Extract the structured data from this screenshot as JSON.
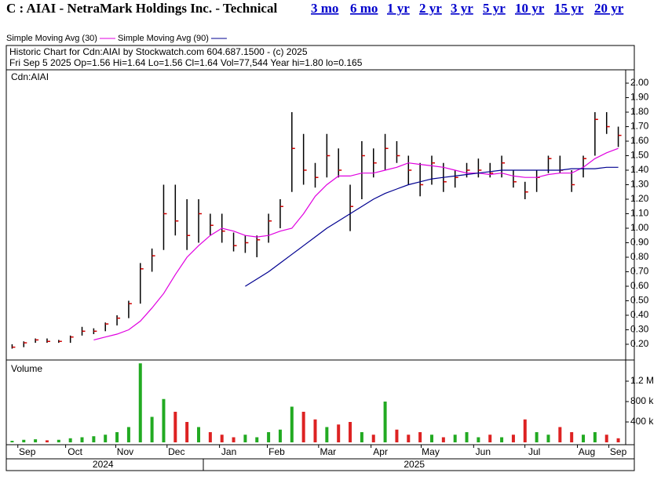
{
  "header": {
    "title": "C : AIAI - NetraMark Holdings Inc. - Technical",
    "links": [
      "3 mo",
      "6 mo",
      "1 yr",
      "2 yr",
      "3 yr",
      "5 yr",
      "10 yr",
      "15 yr",
      "20 yr"
    ],
    "info1": "Historic Chart for Cdn:AIAI by Stockwatch.com 604.687.1500 - (c) 2025",
    "info2": "Fri Sep  5 2025  Op=1.56  Hi=1.64  Lo=1.56  Cl=1.64  Vol=77,544  Year hi=1.80  lo=0.165"
  },
  "chart_data": [
    {
      "type": "ohlc",
      "label": "Cdn:AIAI",
      "high": [
        0.2,
        0.22,
        0.24,
        0.24,
        0.23,
        0.26,
        0.32,
        0.31,
        0.35,
        0.4,
        0.5,
        0.76,
        0.86,
        1.3,
        1.3,
        1.2,
        1.2,
        1.1,
        1.1,
        0.97,
        0.95,
        0.95,
        1.1,
        1.2,
        1.8,
        1.65,
        1.45,
        1.65,
        1.55,
        1.3,
        1.6,
        1.55,
        1.65,
        1.6,
        1.5,
        1.45,
        1.5,
        1.45,
        1.4,
        1.45,
        1.48,
        1.45,
        1.5,
        1.4,
        1.32,
        1.4,
        1.5,
        1.5,
        1.4,
        1.5,
        1.8,
        1.8,
        1.7
      ],
      "low": [
        0.17,
        0.18,
        0.21,
        0.21,
        0.21,
        0.21,
        0.26,
        0.27,
        0.29,
        0.33,
        0.38,
        0.48,
        0.7,
        0.85,
        0.95,
        0.85,
        0.9,
        0.95,
        0.9,
        0.84,
        0.83,
        0.8,
        0.9,
        1.0,
        1.25,
        1.3,
        1.28,
        1.35,
        1.35,
        0.98,
        1.2,
        1.35,
        1.4,
        1.45,
        1.3,
        1.22,
        1.3,
        1.25,
        1.28,
        1.35,
        1.35,
        1.35,
        1.35,
        1.28,
        1.2,
        1.25,
        1.38,
        1.38,
        1.25,
        1.35,
        1.5,
        1.65,
        1.56
      ],
      "close": [
        0.18,
        0.21,
        0.23,
        0.22,
        0.22,
        0.25,
        0.29,
        0.29,
        0.34,
        0.38,
        0.48,
        0.72,
        0.81,
        1.1,
        1.05,
        0.95,
        1.1,
        1.02,
        0.98,
        0.88,
        0.9,
        0.92,
        1.05,
        1.15,
        1.55,
        1.4,
        1.35,
        1.5,
        1.4,
        1.15,
        1.5,
        1.45,
        1.55,
        1.5,
        1.4,
        1.3,
        1.45,
        1.32,
        1.35,
        1.4,
        1.4,
        1.38,
        1.45,
        1.32,
        1.25,
        1.35,
        1.48,
        1.4,
        1.3,
        1.48,
        1.75,
        1.7,
        1.64
      ],
      "series": [
        {
          "name": "Simple Moving Avg (30)",
          "color": "#e000e0",
          "values": [
            null,
            null,
            null,
            null,
            null,
            null,
            null,
            0.23,
            0.25,
            0.27,
            0.3,
            0.36,
            0.45,
            0.55,
            0.68,
            0.8,
            0.88,
            0.95,
            1.0,
            0.98,
            0.95,
            0.94,
            0.95,
            0.98,
            1.0,
            1.1,
            1.22,
            1.3,
            1.36,
            1.36,
            1.38,
            1.38,
            1.4,
            1.42,
            1.45,
            1.44,
            1.43,
            1.42,
            1.4,
            1.38,
            1.38,
            1.37,
            1.38,
            1.36,
            1.35,
            1.35,
            1.37,
            1.38,
            1.38,
            1.42,
            1.48,
            1.52,
            1.55
          ]
        },
        {
          "name": "Simple Moving Avg (90)",
          "color": "#000090",
          "values": [
            null,
            null,
            null,
            null,
            null,
            null,
            null,
            null,
            null,
            null,
            null,
            null,
            null,
            null,
            null,
            null,
            null,
            null,
            null,
            null,
            0.6,
            0.65,
            0.7,
            0.76,
            0.82,
            0.88,
            0.94,
            1.0,
            1.05,
            1.1,
            1.15,
            1.2,
            1.24,
            1.27,
            1.3,
            1.32,
            1.34,
            1.35,
            1.36,
            1.37,
            1.38,
            1.39,
            1.4,
            1.4,
            1.4,
            1.4,
            1.4,
            1.4,
            1.41,
            1.41,
            1.41,
            1.42,
            1.42
          ]
        }
      ],
      "ylim": [
        0.097,
        2.092
      ],
      "yticks": [
        {
          "value": 0.2,
          "label": "0.20"
        },
        {
          "value": 0.3,
          "label": "0.30"
        },
        {
          "value": 0.4,
          "label": "0.40"
        },
        {
          "value": 0.5,
          "label": "0.50"
        },
        {
          "value": 0.6,
          "label": "0.60"
        },
        {
          "value": 0.7,
          "label": "0.70"
        },
        {
          "value": 0.8,
          "label": "0.80"
        },
        {
          "value": 0.9,
          "label": "0.90"
        },
        {
          "value": 1.0,
          "label": "1.00"
        },
        {
          "value": 1.1,
          "label": "1.10"
        },
        {
          "value": 1.2,
          "label": "1.20"
        },
        {
          "value": 1.3,
          "label": "1.30"
        },
        {
          "value": 1.4,
          "label": "1.40"
        },
        {
          "value": 1.5,
          "label": "1.50"
        },
        {
          "value": 1.6,
          "label": "1.60"
        },
        {
          "value": 1.7,
          "label": "1.70"
        },
        {
          "value": 1.8,
          "label": "1.80"
        },
        {
          "value": 1.9,
          "label": "1.90"
        },
        {
          "value": 2.0,
          "label": "2.00"
        }
      ]
    },
    {
      "type": "bar",
      "label": "Volume",
      "values": [
        30000,
        50000,
        60000,
        40000,
        50000,
        80000,
        100000,
        120000,
        150000,
        200000,
        300000,
        1550000,
        500000,
        850000,
        600000,
        400000,
        300000,
        200000,
        150000,
        100000,
        150000,
        100000,
        200000,
        250000,
        700000,
        600000,
        450000,
        300000,
        350000,
        400000,
        200000,
        150000,
        800000,
        250000,
        150000,
        200000,
        150000,
        100000,
        150000,
        200000,
        100000,
        150000,
        100000,
        150000,
        450000,
        200000,
        150000,
        300000,
        200000,
        150000,
        200000,
        150000,
        80000
      ],
      "ylim": [
        0,
        1600000
      ],
      "yticks": [
        {
          "value": 400000,
          "label": "400 k"
        },
        {
          "value": 800000,
          "label": "800 k"
        },
        {
          "value": 1200000,
          "label": "1.2 M"
        }
      ],
      "xticks": [
        {
          "value": 1.8,
          "label": "Sep"
        },
        {
          "value": 5.9,
          "label": "Oct"
        },
        {
          "value": 10.2,
          "label": "Nov"
        },
        {
          "value": 14.6,
          "label": "Dec"
        },
        {
          "value": 19.1,
          "label": "Jan"
        },
        {
          "value": 23.2,
          "label": "Feb"
        },
        {
          "value": 27.6,
          "label": "Mar"
        },
        {
          "value": 32.1,
          "label": "Apr"
        },
        {
          "value": 36.4,
          "label": "May"
        },
        {
          "value": 40.9,
          "label": "Jun"
        },
        {
          "value": 45.3,
          "label": "Jul"
        },
        {
          "value": 49.8,
          "label": "Aug"
        },
        {
          "value": 52.5,
          "label": "Sep"
        }
      ],
      "years": [
        {
          "value": 8.3,
          "label": "2024"
        },
        {
          "value": 35,
          "label": "2025"
        }
      ]
    }
  ]
}
